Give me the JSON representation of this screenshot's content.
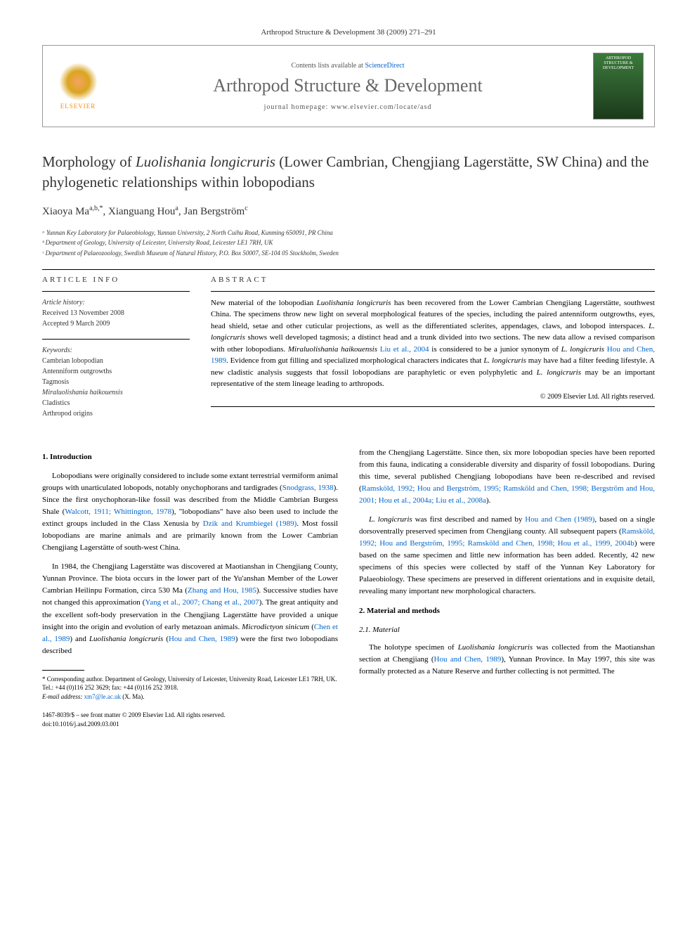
{
  "header": {
    "journal_ref": "Arthropod Structure & Development 38 (2009) 271–291",
    "contents_prefix": "Contents lists available at ",
    "contents_link": "ScienceDirect",
    "journal_title": "Arthropod Structure & Development",
    "homepage_prefix": "journal homepage: ",
    "homepage_url": "www.elsevier.com/locate/asd",
    "elsevier": "ELSEVIER",
    "cover_text": "ARTHROPOD STRUCTURE & DEVELOPMENT"
  },
  "article": {
    "title_pre": "Morphology of ",
    "title_italic": "Luolishania longicruris",
    "title_post": " (Lower Cambrian, Chengjiang Lagerstätte, SW China) and the phylogenetic relationships within lobopodians",
    "authors_html": "Xiaoya Ma",
    "author1_sup": "a,b,*",
    "author2": ", Xianguang Hou",
    "author2_sup": "a",
    "author3": ", Jan Bergström",
    "author3_sup": "c",
    "affiliations": [
      "ᵃ Yunnan Key Laboratory for Palaeobiology, Yunnan University, 2 North Cuihu Road, Kunming 650091, PR China",
      "ᵇ Department of Geology, University of Leicester, University Road, Leicester LE1 7RH, UK",
      "ᶜ Department of Palaeozoology, Swedish Museum of Natural History, P.O. Box 50007, SE-104 05 Stockholm, Sweden"
    ]
  },
  "info": {
    "heading": "ARTICLE INFO",
    "history_label": "Article history:",
    "received": "Received 13 November 2008",
    "accepted": "Accepted 9 March 2009",
    "keywords_label": "Keywords:",
    "keywords": [
      "Cambrian lobopodian",
      "Antenniform outgrowths",
      "Tagmosis",
      "Miraluolishania haikouensis",
      "Cladistics",
      "Arthropod origins"
    ]
  },
  "abstract": {
    "heading": "ABSTRACT",
    "p1a": "New material of the lobopodian ",
    "p1_it1": "Luolishania longicruris",
    "p1b": " has been recovered from the Lower Cambrian Chengjiang Lagerstätte, southwest China. The specimens throw new light on several morphological features of the species, including the paired antenniform outgrowths, eyes, head shield, setae and other cuticular projections, as well as the differentiated sclerites, appendages, claws, and lobopod interspaces. ",
    "p1_it2": "L. longicruris",
    "p1c": " shows well developed tagmosis; a distinct head and a trunk divided into two sections. The new data allow a revised comparison with other lobopodians. ",
    "p1_it3": "Miraluolishania haikouensis",
    "p1_link1": " Liu et al., 2004",
    "p1d": " is considered to be a junior synonym of ",
    "p1_it4": "L. longicruris",
    "p1_link2": " Hou and Chen, 1989",
    "p1e": ". Evidence from gut filling and specialized morphological characters indicates that ",
    "p1_it5": "L. longicruris",
    "p1f": " may have had a filter feeding lifestyle. A new cladistic analysis suggests that fossil lobopodians are paraphyletic or even polyphyletic and ",
    "p1_it6": "L. longicruris",
    "p1g": " may be an important representative of the stem lineage leading to arthropods.",
    "copyright": "© 2009 Elsevier Ltd. All rights reserved."
  },
  "body": {
    "left": {
      "h1": "1. Introduction",
      "p1a": "Lobopodians were originally considered to include some extant terrestrial vermiform animal groups with unarticulated lobopods, notably onychophorans and tardigrades (",
      "p1_l1": "Snodgrass, 1938",
      "p1b": "). Since the first onychophoran-like fossil was described from the Middle Cambrian Burgess Shale (",
      "p1_l2": "Walcott, 1911; Whittington, 1978",
      "p1c": "), \"lobopodians\" have also been used to include the extinct groups included in the Class Xenusia by ",
      "p1_l3": "Dzik and Krumbiegel (1989)",
      "p1d": ". Most fossil lobopodians are marine animals and are primarily known from the Lower Cambrian Chengjiang Lagerstätte of south-west China.",
      "p2a": "In 1984, the Chengjiang Lagerstätte was discovered at Maotianshan in Chengjiang County, Yunnan Province. The biota occurs in the lower part of the Yu'anshan Member of the Lower Cambrian Heilinpu Formation, circa 530 Ma (",
      "p2_l1": "Zhang and Hou, 1985",
      "p2b": "). Successive studies have not changed this approximation (",
      "p2_l2": "Yang et al., 2007; Chang et al., 2007",
      "p2c": "). The great antiquity and the excellent soft-body preservation in the Chengjiang Lagerstätte have provided a unique insight into the origin and evolution of early metazoan animals. ",
      "p2_it1": "Microdictyon sinicum",
      "p2d": " (",
      "p2_l3": "Chen et al., 1989",
      "p2e": ") and ",
      "p2_it2": "Luolishania longicruris",
      "p2f": " (",
      "p2_l4": "Hou and Chen, 1989",
      "p2g": ") were the first two lobopodians described",
      "footnote_star": "* Corresponding author. Department of Geology, University of Leicester, University Road, Leicester LE1 7RH, UK. Tel.: +44 (0)116 252 3629; fax: +44 (0)116 252 3918.",
      "footnote_email_label": "E-mail address: ",
      "footnote_email": "xm7@le.ac.uk",
      "footnote_email_name": " (X. Ma).",
      "footer_line1": "1467-8039/$ – see front matter © 2009 Elsevier Ltd. All rights reserved.",
      "footer_line2": "doi:10.1016/j.asd.2009.03.001"
    },
    "right": {
      "p1a": "from the Chengjiang Lagerstätte. Since then, six more lobopodian species have been reported from this fauna, indicating a considerable diversity and disparity of fossil lobopodians. During this time, several published Chengjiang lobopodians have been re-described and revised (",
      "p1_l1": "Ramsköld, 1992; Hou and Bergström, 1995; Ramsköld and Chen, 1998; Bergström and Hou, 2001; Hou et al., 2004a; Liu et al., 2008a",
      "p1b": ").",
      "p2_it1": "L. longicruris",
      "p2a": " was first described and named by ",
      "p2_l1": "Hou and Chen (1989)",
      "p2b": ", based on a single dorsoventrally preserved specimen from Chengjiang county. All subsequent papers (",
      "p2_l2": "Ramsköld, 1992; Hou and Bergström, 1995; Ramsköld and Chen, 1998; Hou et al., 1999, 2004b",
      "p2c": ") were based on the same specimen and little new information has been added. Recently, 42 new specimens of this species were collected by staff of the Yunnan Key Laboratory for Palaeobiology. These specimens are preserved in different orientations and in exquisite detail, revealing many important new morphological characters.",
      "h2": "2. Material and methods",
      "h2_1": "2.1. Material",
      "p3a": "The holotype specimen of ",
      "p3_it1": "Luolishania longicruris",
      "p3b": " was collected from the Maotianshan section at Chengjiang (",
      "p3_l1": "Hou and Chen, 1989",
      "p3c": "), Yunnan Province. In May 1997, this site was formally protected as a Nature Reserve and further collecting is not permitted. The"
    }
  }
}
